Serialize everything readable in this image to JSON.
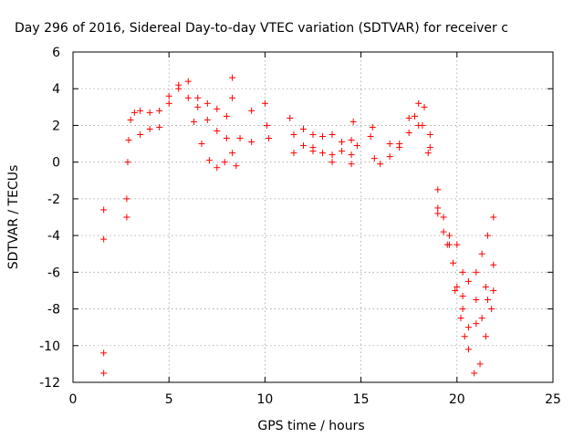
{
  "chart_data": {
    "type": "scatter",
    "title": "Day 296 of 2016, Sidereal Day-to-day VTEC variation (SDTVAR) for receiver c",
    "xlabel": "GPS time / hours",
    "ylabel": "SDTVAR / TECUs",
    "xlim": [
      0,
      25
    ],
    "ylim": [
      -12,
      6
    ],
    "xticks": [
      "0",
      "5",
      "10",
      "15",
      "20",
      "25"
    ],
    "yticks": [
      "-12",
      "-10",
      "-8",
      "-6",
      "-4",
      "-2",
      "0",
      "2",
      "4",
      "6"
    ],
    "grid": true,
    "marker": "+",
    "color": "#ff0000",
    "series": [
      {
        "name": "",
        "points": [
          [
            1.6,
            -2.6
          ],
          [
            1.6,
            -4.2
          ],
          [
            1.6,
            -10.4
          ],
          [
            1.6,
            -11.5
          ],
          [
            2.8,
            -3.0
          ],
          [
            2.8,
            -2.0
          ],
          [
            2.85,
            0.0
          ],
          [
            2.9,
            1.2
          ],
          [
            3.0,
            2.3
          ],
          [
            3.2,
            2.7
          ],
          [
            3.5,
            2.8
          ],
          [
            4.0,
            2.7
          ],
          [
            4.5,
            2.8
          ],
          [
            5.0,
            3.2
          ],
          [
            5.5,
            4.0
          ],
          [
            6.0,
            4.4
          ],
          [
            6.5,
            3.5
          ],
          [
            7.0,
            3.2
          ],
          [
            7.5,
            2.9
          ],
          [
            8.0,
            2.5
          ],
          [
            3.5,
            1.5
          ],
          [
            4.0,
            1.8
          ],
          [
            4.5,
            1.9
          ],
          [
            5.0,
            3.6
          ],
          [
            5.5,
            4.2
          ],
          [
            6.0,
            3.5
          ],
          [
            6.3,
            2.2
          ],
          [
            6.7,
            1.0
          ],
          [
            7.1,
            0.1
          ],
          [
            7.5,
            -0.3
          ],
          [
            7.9,
            0.0
          ],
          [
            6.5,
            3.0
          ],
          [
            7.0,
            2.3
          ],
          [
            7.5,
            1.7
          ],
          [
            8.0,
            1.3
          ],
          [
            8.3,
            4.6
          ],
          [
            8.3,
            3.5
          ],
          [
            8.3,
            0.5
          ],
          [
            8.5,
            -0.2
          ],
          [
            8.7,
            1.3
          ],
          [
            9.3,
            2.8
          ],
          [
            9.3,
            1.1
          ],
          [
            10.0,
            3.2
          ],
          [
            10.1,
            2.0
          ],
          [
            10.2,
            1.3
          ],
          [
            11.3,
            2.4
          ],
          [
            11.5,
            1.5
          ],
          [
            11.5,
            0.5
          ],
          [
            12.0,
            1.8
          ],
          [
            12.5,
            1.5
          ],
          [
            13.0,
            1.4
          ],
          [
            13.5,
            1.5
          ],
          [
            14.0,
            1.1
          ],
          [
            14.5,
            1.2
          ],
          [
            12.0,
            0.9
          ],
          [
            12.5,
            0.6
          ],
          [
            13.0,
            0.5
          ],
          [
            13.5,
            0.4
          ],
          [
            14.0,
            0.6
          ],
          [
            14.5,
            0.4
          ],
          [
            12.5,
            0.8
          ],
          [
            13.5,
            0.0
          ],
          [
            14.5,
            -0.1
          ],
          [
            14.6,
            2.2
          ],
          [
            14.8,
            0.9
          ],
          [
            15.5,
            1.4
          ],
          [
            15.7,
            0.2
          ],
          [
            16.0,
            -0.1
          ],
          [
            16.5,
            0.3
          ],
          [
            17.0,
            0.8
          ],
          [
            15.6,
            1.9
          ],
          [
            16.5,
            1.0
          ],
          [
            17.0,
            1.0
          ],
          [
            17.5,
            1.6
          ],
          [
            17.5,
            2.4
          ],
          [
            18.0,
            3.2
          ],
          [
            18.3,
            3.0
          ],
          [
            18.6,
            1.5
          ],
          [
            19.0,
            -1.5
          ],
          [
            19.3,
            -3.0
          ],
          [
            19.6,
            -4.0
          ],
          [
            20.0,
            -4.5
          ],
          [
            20.3,
            -6.0
          ],
          [
            20.6,
            -6.5
          ],
          [
            21.0,
            -6.0
          ],
          [
            21.3,
            -5.0
          ],
          [
            21.6,
            -4.0
          ],
          [
            21.9,
            -3.0
          ],
          [
            17.8,
            2.5
          ],
          [
            18.2,
            2.0
          ],
          [
            18.6,
            0.8
          ],
          [
            19.0,
            -2.5
          ],
          [
            19.3,
            -3.8
          ],
          [
            19.6,
            -4.5
          ],
          [
            19.8,
            -5.5
          ],
          [
            20.0,
            -6.8
          ],
          [
            20.3,
            -8.0
          ],
          [
            20.6,
            -9.0
          ],
          [
            21.0,
            -8.8
          ],
          [
            21.3,
            -8.5
          ],
          [
            21.6,
            -7.5
          ],
          [
            21.9,
            -5.6
          ],
          [
            18.0,
            2.0
          ],
          [
            18.5,
            0.5
          ],
          [
            19.0,
            -2.8
          ],
          [
            19.5,
            -4.5
          ],
          [
            19.9,
            -7.0
          ],
          [
            20.2,
            -8.5
          ],
          [
            20.4,
            -9.5
          ],
          [
            20.6,
            -10.2
          ],
          [
            20.3,
            -7.3
          ],
          [
            20.9,
            -11.5
          ],
          [
            21.2,
            -11.0
          ],
          [
            21.5,
            -9.5
          ],
          [
            21.8,
            -8.0
          ],
          [
            21.0,
            -7.5
          ],
          [
            21.5,
            -6.8
          ],
          [
            21.9,
            -7.0
          ]
        ]
      }
    ]
  }
}
